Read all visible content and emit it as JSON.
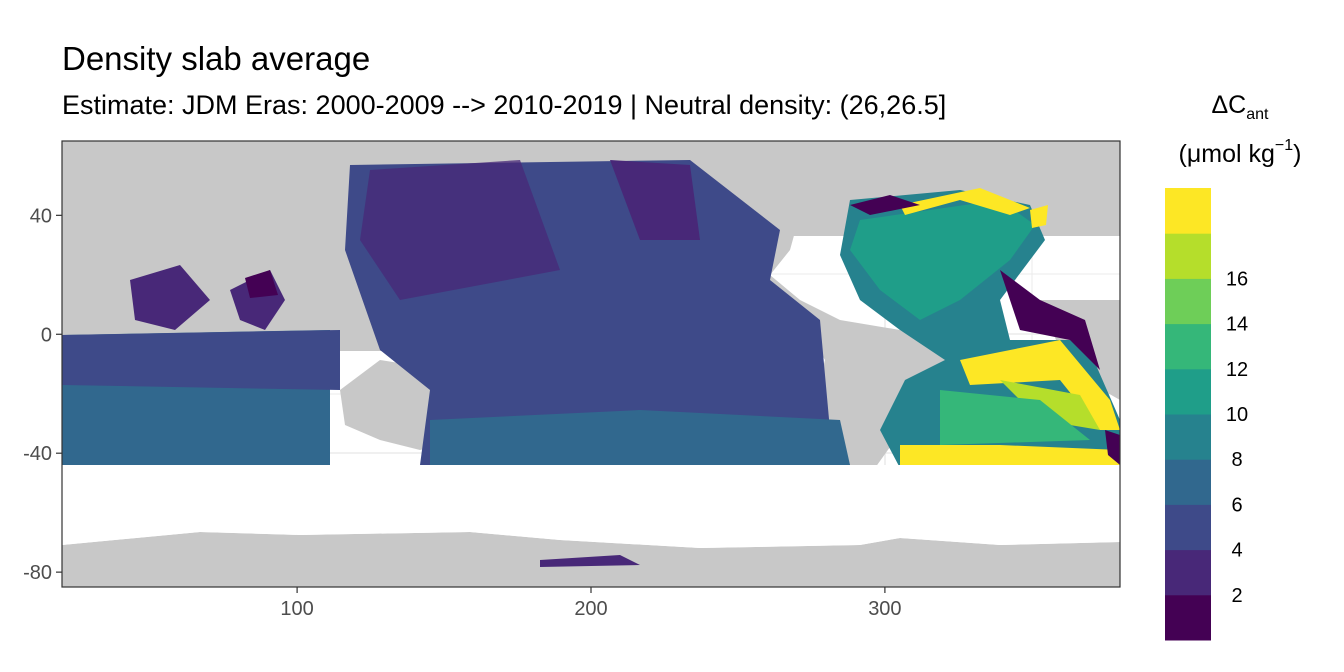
{
  "title": "Density slab average",
  "subtitle": "Estimate: JDM Eras: 2000-2009 --> 2010-2019 | Neutral density: (26,26.5]",
  "map": {
    "x_ticks": [
      "100",
      "200",
      "300"
    ],
    "y_ticks": [
      "40",
      "0",
      "-40",
      "-80"
    ],
    "x_tick_values": [
      100,
      200,
      300
    ],
    "y_tick_values": [
      40,
      0,
      -40,
      -80
    ],
    "x_range": [
      20,
      380
    ],
    "y_range": [
      -85,
      65
    ],
    "land_color": "#c8c8c8",
    "no_data_color": "#ffffff"
  },
  "legend": {
    "title_symbol": "ΔC",
    "title_subscript": "ant",
    "unit_prefix": "(μmol kg",
    "unit_superscript": "−1",
    "unit_suffix": ")",
    "labels": [
      "16",
      "14",
      "12",
      "10",
      "8",
      "6",
      "4",
      "2"
    ],
    "label_values": [
      16,
      14,
      12,
      10,
      8,
      6,
      4,
      2
    ],
    "bins": [
      {
        "lower": 0,
        "upper": 2,
        "color": "#440154"
      },
      {
        "lower": 2,
        "upper": 4,
        "color": "#482878"
      },
      {
        "lower": 4,
        "upper": 6,
        "color": "#3e4a89"
      },
      {
        "lower": 6,
        "upper": 8,
        "color": "#31688e"
      },
      {
        "lower": 8,
        "upper": 10,
        "color": "#26828e"
      },
      {
        "lower": 10,
        "upper": 12,
        "color": "#1f9e89"
      },
      {
        "lower": 12,
        "upper": 14,
        "color": "#35b779"
      },
      {
        "lower": 14,
        "upper": 16,
        "color": "#6ece58"
      },
      {
        "lower": 16,
        "upper": 18,
        "color": "#b5de2b"
      },
      {
        "lower": 18,
        "upper": 20,
        "color": "#fde725"
      }
    ]
  }
}
